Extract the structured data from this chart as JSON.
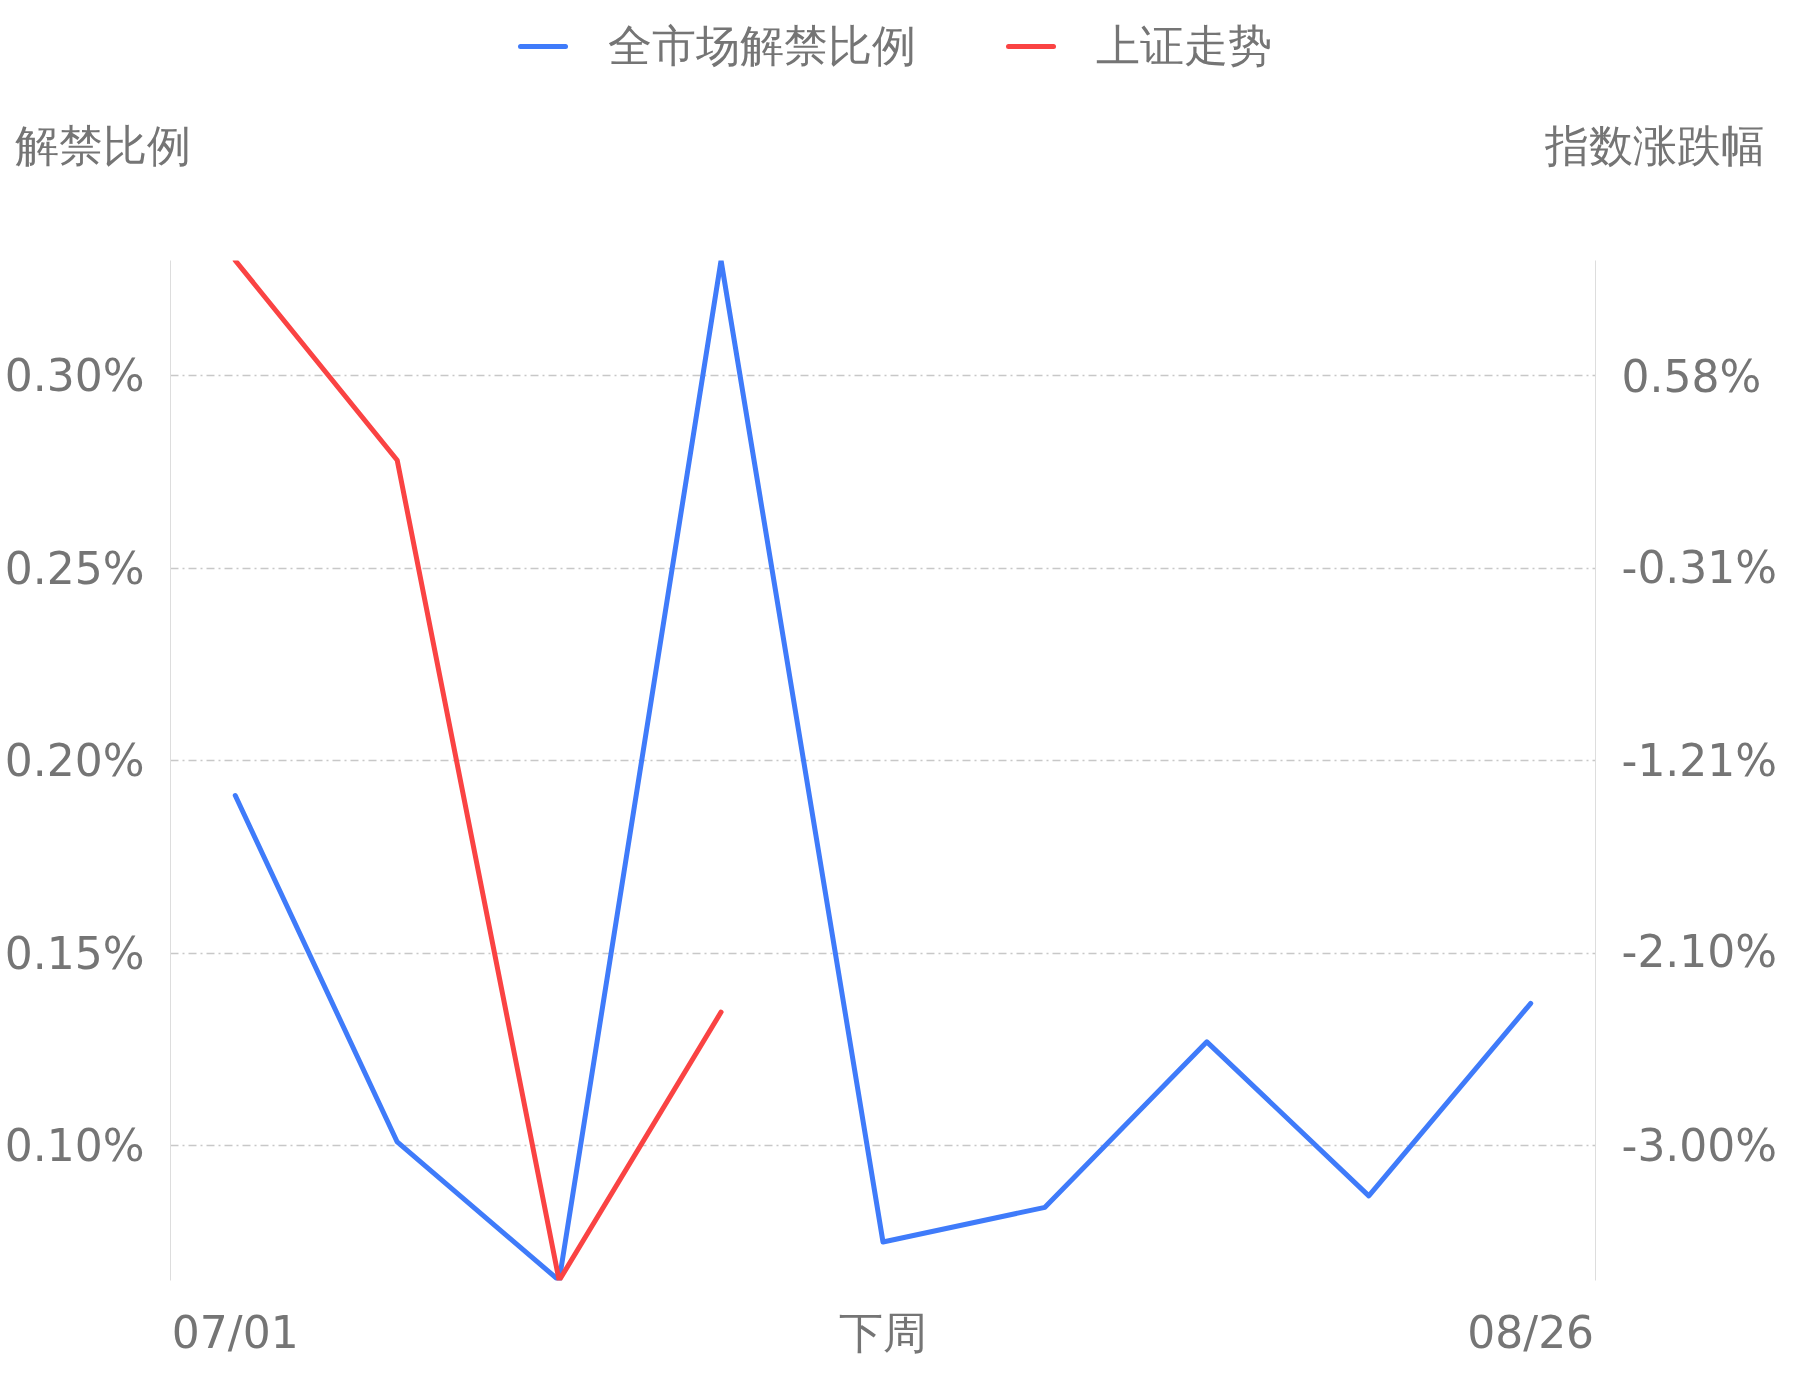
{
  "chart_data": {
    "type": "line",
    "categories": [
      "07/01",
      null,
      null,
      null,
      "下周",
      null,
      null,
      null,
      "08/26"
    ],
    "ylabel": "解禁比例",
    "y2label": "指数涨跌幅",
    "series": [
      {
        "name": "全市场解禁比例",
        "color": "#3f7bfa",
        "values": [
          0.191,
          0.101,
          0.065,
          0.33,
          0.075,
          0.084,
          0.127,
          0.087,
          0.137
        ]
      },
      {
        "name": "上证走势",
        "color": "#fa4343",
        "axis": "y2",
        "values": [
          1.12,
          0.19,
          -3.63,
          -2.38,
          null,
          null,
          null,
          null,
          null
        ]
      }
    ],
    "ylim": [
      0.065,
      0.33
    ],
    "yticks": [
      {
        "value": 0.1,
        "label": "0.10%"
      },
      {
        "value": 0.15,
        "label": "0.15%"
      },
      {
        "value": 0.2,
        "label": "0.20%"
      },
      {
        "value": 0.25,
        "label": "0.25%"
      },
      {
        "value": 0.3,
        "label": "0.30%"
      }
    ],
    "y2lim": [
      -3.63,
      1.12
    ],
    "y2ticks": [
      {
        "value": -3.0,
        "label": "-3.00%"
      },
      {
        "value": -2.1,
        "label": "-2.10%"
      },
      {
        "value": -1.21,
        "label": "-1.21%"
      },
      {
        "value": -0.31,
        "label": "-0.31%"
      },
      {
        "value": 0.58,
        "label": "0.58%"
      }
    ],
    "grid": "y",
    "legend": "top",
    "marker": "none",
    "line_style": "solid"
  }
}
